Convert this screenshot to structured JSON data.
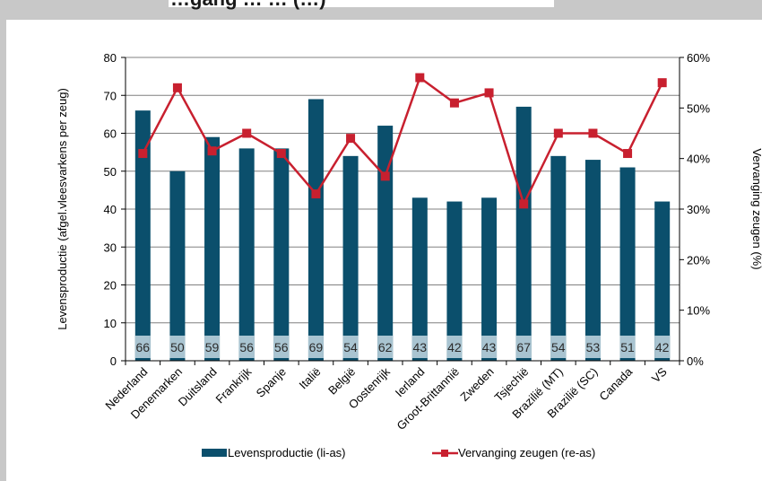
{
  "colors": {
    "bar": "#0b4f6c",
    "line": "#c8202f",
    "label_band": "#a9c4d1",
    "grid": "#808080"
  },
  "chart_data": {
    "type": "bar",
    "title": "…gang … … (…)",
    "categories": [
      "Nederland",
      "Denemarken",
      "Duitsland",
      "Frankrijk",
      "Spanje",
      "Italië",
      "België",
      "Oostenrijk",
      "Ierland",
      "Groot-Brittannië",
      "Zweden",
      "Tsjechië",
      "Brazilië (MT)",
      "Brazilië (SC)",
      "Canada",
      "VS"
    ],
    "series": [
      {
        "name": "Levensproductie (li-as)",
        "type": "bar",
        "axis": "left",
        "values": [
          66,
          50,
          59,
          56,
          56,
          69,
          54,
          62,
          43,
          42,
          43,
          67,
          54,
          53,
          51,
          42
        ],
        "labels": [
          "66",
          "50",
          "59",
          "56",
          "56",
          "69",
          "54",
          "62",
          "43",
          "42",
          "43",
          "67",
          "54",
          "53",
          "51",
          "42"
        ]
      },
      {
        "name": "Vervanging zeugen (re-as)",
        "type": "line",
        "axis": "right",
        "values": [
          41,
          54,
          41.5,
          45,
          41,
          33,
          44,
          36.5,
          56,
          51,
          53,
          31,
          45,
          45,
          41,
          55
        ]
      }
    ],
    "ylabel": "Levensproductie (afgel.vleesvarkens per zeug)",
    "y2label": "Vervanging zeugen (%)",
    "ylim": [
      0,
      80
    ],
    "y2lim": [
      0,
      60
    ],
    "yticks": [
      "0",
      "10",
      "20",
      "30",
      "40",
      "50",
      "60",
      "70",
      "80"
    ],
    "y2ticks": [
      "0%",
      "10%",
      "20%",
      "30%",
      "40%",
      "50%",
      "60%"
    ],
    "grid": true,
    "legend": "bottom"
  }
}
